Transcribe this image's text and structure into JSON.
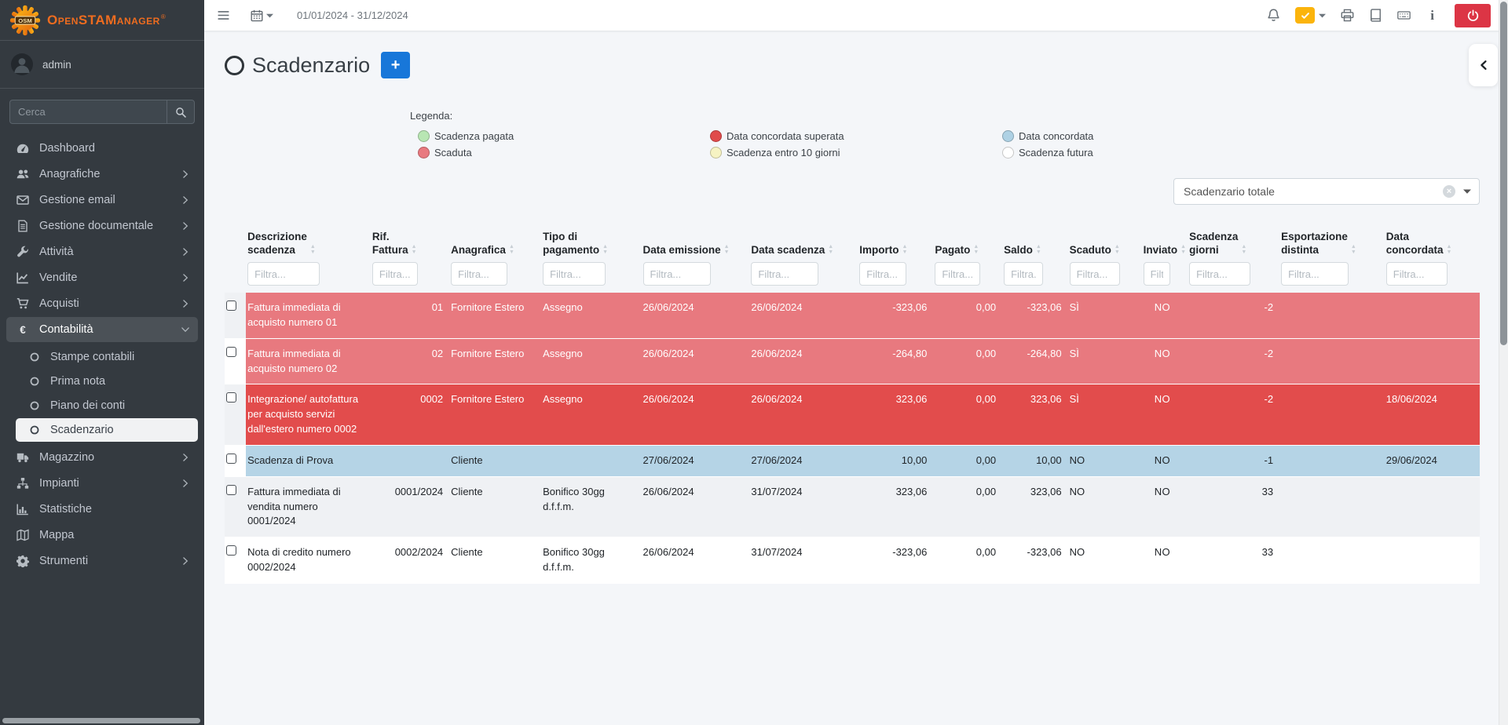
{
  "topbar": {
    "date_range": "01/01/2024 - 31/12/2024",
    "left_icons": [
      "menu",
      "calendar"
    ],
    "right_icons": [
      "bell",
      "tasks-check",
      "printer",
      "book",
      "keyboard",
      "info",
      "power"
    ],
    "colors": {
      "warning": "#fbb40c",
      "danger": "#dc3545"
    }
  },
  "sidebar": {
    "logo_text": "OpenSTAManager",
    "logo_registered": "®",
    "user": "admin",
    "search_placeholder": "Cerca",
    "items": [
      {
        "label": "Dashboard",
        "icon": "dashboard",
        "chevron": ""
      },
      {
        "label": "Anagrafiche",
        "icon": "users",
        "chevron": "right"
      },
      {
        "label": "Gestione email",
        "icon": "envelope",
        "chevron": "right"
      },
      {
        "label": "Gestione documentale",
        "icon": "document",
        "chevron": "right"
      },
      {
        "label": "Attività",
        "icon": "wrench",
        "chevron": "right"
      },
      {
        "label": "Vendite",
        "icon": "chart-line",
        "chevron": "right"
      },
      {
        "label": "Acquisti",
        "icon": "cart",
        "chevron": "right"
      },
      {
        "label": "Contabilità",
        "icon": "euro",
        "chevron": "down",
        "open": true,
        "children": [
          {
            "label": "Stampe contabili",
            "active": false
          },
          {
            "label": "Prima nota",
            "active": false
          },
          {
            "label": "Piano dei conti",
            "active": false
          },
          {
            "label": "Scadenzario",
            "active": true
          }
        ]
      },
      {
        "label": "Magazzino",
        "icon": "truck",
        "chevron": "right"
      },
      {
        "label": "Impianti",
        "icon": "sitemap",
        "chevron": "right"
      },
      {
        "label": "Statistiche",
        "icon": "chart-bar",
        "chevron": ""
      },
      {
        "label": "Mappa",
        "icon": "map",
        "chevron": ""
      },
      {
        "label": "Strumenti",
        "icon": "gear",
        "chevron": "right"
      }
    ]
  },
  "main": {
    "title": "Scadenzario",
    "add_button_label": "+",
    "accent_color": "#1877d9",
    "legend": {
      "title": "Legenda:",
      "items": [
        {
          "label": "Scadenza pagata",
          "color": "#b8e6b3"
        },
        {
          "label": "Scaduta",
          "color": "#e8797f"
        },
        {
          "label": "Data concordata superata",
          "color": "#e04b4b"
        },
        {
          "label": "Scadenza entro 10 giorni",
          "color": "#f6f3c3"
        },
        {
          "label": "Data concordata",
          "color": "#aed1e4"
        },
        {
          "label": "Scadenza futura",
          "color": "#ffffff"
        }
      ]
    },
    "view_select": {
      "value": "Scadenzario totale"
    },
    "table": {
      "filter_placeholder": "Filtra...",
      "columns": [
        "Descrizione\nscadenza",
        "Rif.\nFattura",
        "Anagrafica",
        "Tipo di\npagamento",
        "Data emissione",
        "Data scadenza",
        "Importo",
        "Pagato",
        "Saldo",
        "Scaduto",
        "Inviato",
        "Scadenza\ngiorni",
        "Esportazione\ndistinta",
        "Data\nconcordata"
      ],
      "status_colors": {
        "scaduta": "#e8797f",
        "data-concordata-superata": "#e24c4c",
        "data-concordata": "#b5d4e6"
      },
      "rows": [
        {
          "status": "scaduta",
          "cells": [
            "Fattura immediata di acquisto numero 01",
            "01",
            "Fornitore Estero",
            "Assegno",
            "26/06/2024",
            "26/06/2024",
            "-323,06",
            "0,00",
            "-323,06",
            "SÌ",
            "NO",
            "-2",
            "",
            ""
          ]
        },
        {
          "status": "scaduta",
          "cells": [
            "Fattura immediata di acquisto numero 02",
            "02",
            "Fornitore Estero",
            "Assegno",
            "26/06/2024",
            "26/06/2024",
            "-264,80",
            "0,00",
            "-264,80",
            "SÌ",
            "NO",
            "-2",
            "",
            ""
          ]
        },
        {
          "status": "data-concordata-superata",
          "cells": [
            "Integrazione/ autofattura per acquisto servizi dall'estero numero 0002",
            "0002",
            "Fornitore Estero",
            "Assegno",
            "26/06/2024",
            "26/06/2024",
            "323,06",
            "0,00",
            "323,06",
            "SÌ",
            "NO",
            "-2",
            "",
            "18/06/2024"
          ]
        },
        {
          "status": "data-concordata",
          "cells": [
            "Scadenza di Prova",
            "",
            "Cliente",
            "",
            "27/06/2024",
            "27/06/2024",
            "10,00",
            "0,00",
            "10,00",
            "NO",
            "NO",
            "-1",
            "",
            "29/06/2024"
          ]
        },
        {
          "status": "",
          "cells": [
            "Fattura immediata di vendita numero 0001/2024",
            "0001/2024",
            "Cliente",
            "Bonifico 30gg d.f.f.m.",
            "26/06/2024",
            "31/07/2024",
            "323,06",
            "0,00",
            "323,06",
            "NO",
            "NO",
            "33",
            "",
            ""
          ]
        },
        {
          "status": "",
          "cells": [
            "Nota di credito numero 0002/2024",
            "0002/2024",
            "Cliente",
            "Bonifico 30gg d.f.f.m.",
            "26/06/2024",
            "31/07/2024",
            "-323,06",
            "0,00",
            "-323,06",
            "NO",
            "NO",
            "33",
            "",
            ""
          ]
        }
      ]
    }
  }
}
